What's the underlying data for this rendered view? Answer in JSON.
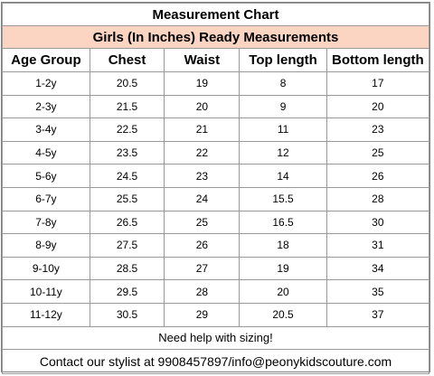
{
  "title": "Measurement Chart",
  "subtitle": "Girls (In Inches) Ready Measurements",
  "headers": [
    "Age Group",
    "Chest",
    "Waist",
    "Top length",
    "Bottom length"
  ],
  "rows": [
    [
      "1-2y",
      "20.5",
      "19",
      "8",
      "17"
    ],
    [
      "2-3y",
      "21.5",
      "20",
      "9",
      "20"
    ],
    [
      "3-4y",
      "22.5",
      "21",
      "11",
      "23"
    ],
    [
      "4-5y",
      "23.5",
      "22",
      "12",
      "25"
    ],
    [
      "5-6y",
      "24.5",
      "23",
      "14",
      "26"
    ],
    [
      "6-7y",
      "25.5",
      "24",
      "15.5",
      "28"
    ],
    [
      "7-8y",
      "26.5",
      "25",
      "16.5",
      "30"
    ],
    [
      "8-9y",
      "27.5",
      "26",
      "18",
      "31"
    ],
    [
      "9-10y",
      "28.5",
      "27",
      "19",
      "34"
    ],
    [
      "10-11y",
      "29.5",
      "28",
      "20",
      "35"
    ],
    [
      "11-12y",
      "30.5",
      "29",
      "20.5",
      "37"
    ]
  ],
  "help_text": "Need help with sizing!",
  "contact_text": "Contact our stylist at 9908457897/info@peonykidscouture.com",
  "colors": {
    "subtitle_bg": "#fbd5c1",
    "border": "#9a9a9a"
  }
}
